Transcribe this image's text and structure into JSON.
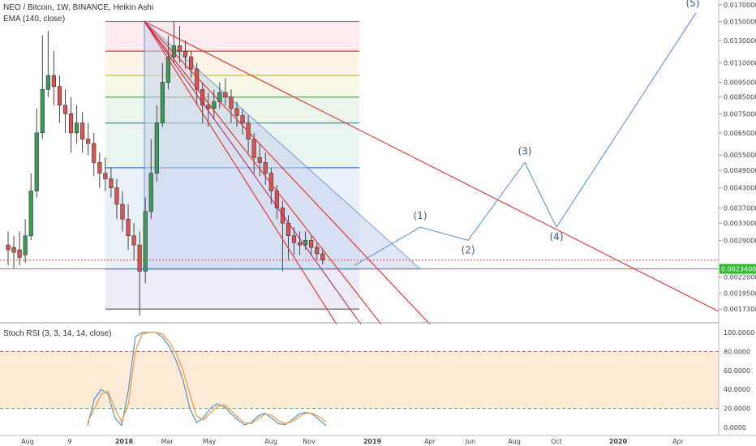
{
  "header": {
    "symbol_line": "NEO / Bitcoin, 1W, BINANCE, Heikin Ashi",
    "indicator_line": "EMA (140, close)",
    "stoch_label": "Stoch RSI (3, 3, 14, 14, close)"
  },
  "colors": {
    "bull": "#3a9a57",
    "bear": "#d9534f",
    "trend_red": "#e53935",
    "trend_blue": "#4a7fd6",
    "wave": "#6e9fd6",
    "stoch_k": "#5a9bd4",
    "stoch_d": "#ff9a3c",
    "price_green": "#2ebd2e"
  },
  "chart_data": [
    {
      "type": "candlestick",
      "title": "NEO / Bitcoin, 1W, BINANCE, Heikin Ashi",
      "y_scale": "log",
      "ylim": [
        0.0016,
        0.0172
      ],
      "y_ticks": [
        0.017,
        0.015,
        0.013,
        0.011,
        0.0095,
        0.0085,
        0.0075,
        0.0065,
        0.0055,
        0.0049,
        0.0043,
        0.0037,
        0.0033,
        0.0029,
        0.0022,
        0.00195,
        0.00173
      ],
      "y_tick_labels": [
        "0.01700000",
        "0.01500000",
        "0.01300000",
        "0.01100000",
        "0.00950000",
        "0.00850000",
        "0.00750000",
        "0.00650000",
        "0.00550000",
        "0.00490000",
        "0.00430000",
        "0.00370000",
        "0.00330000",
        "0.00290000",
        "0.00220000",
        "0.00195000",
        "0.00173000"
      ],
      "price_label": "0.00234000",
      "x_tick_labels": [
        "Aug",
        "9",
        "2018",
        "Mar",
        "May",
        "Aug",
        "Nov",
        "2019",
        "Apr",
        "Jun",
        "Aug",
        "Oct",
        "2020",
        "Apr"
      ],
      "candles": [
        {
          "o": 0.0028,
          "c": 0.0027,
          "h": 0.0031,
          "l": 0.0024
        },
        {
          "o": 0.00275,
          "c": 0.00265,
          "h": 0.003,
          "l": 0.00235
        },
        {
          "o": 0.0027,
          "c": 0.00255,
          "h": 0.0031,
          "l": 0.0024
        },
        {
          "o": 0.0026,
          "c": 0.003,
          "h": 0.0034,
          "l": 0.00245
        },
        {
          "o": 0.003,
          "c": 0.0042,
          "h": 0.0048,
          "l": 0.0029
        },
        {
          "o": 0.0042,
          "c": 0.0065,
          "h": 0.0078,
          "l": 0.004
        },
        {
          "o": 0.0065,
          "c": 0.009,
          "h": 0.0135,
          "l": 0.0062
        },
        {
          "o": 0.009,
          "c": 0.01,
          "h": 0.014,
          "l": 0.0085
        },
        {
          "o": 0.01,
          "c": 0.0092,
          "h": 0.012,
          "l": 0.008
        },
        {
          "o": 0.0092,
          "c": 0.008,
          "h": 0.01,
          "l": 0.007
        },
        {
          "o": 0.008,
          "c": 0.0075,
          "h": 0.009,
          "l": 0.0065
        },
        {
          "o": 0.0075,
          "c": 0.0065,
          "h": 0.0085,
          "l": 0.0056
        },
        {
          "o": 0.0065,
          "c": 0.007,
          "h": 0.008,
          "l": 0.006
        },
        {
          "o": 0.007,
          "c": 0.0062,
          "h": 0.0076,
          "l": 0.0056
        },
        {
          "o": 0.0062,
          "c": 0.006,
          "h": 0.007,
          "l": 0.0055
        },
        {
          "o": 0.006,
          "c": 0.0052,
          "h": 0.0065,
          "l": 0.0047
        },
        {
          "o": 0.0052,
          "c": 0.0048,
          "h": 0.0056,
          "l": 0.0043
        },
        {
          "o": 0.0048,
          "c": 0.0046,
          "h": 0.0054,
          "l": 0.0042
        },
        {
          "o": 0.0046,
          "c": 0.0043,
          "h": 0.005,
          "l": 0.004
        },
        {
          "o": 0.0043,
          "c": 0.0038,
          "h": 0.0046,
          "l": 0.0034
        },
        {
          "o": 0.0038,
          "c": 0.0034,
          "h": 0.0042,
          "l": 0.0031
        },
        {
          "o": 0.0034,
          "c": 0.003,
          "h": 0.0038,
          "l": 0.0027
        },
        {
          "o": 0.003,
          "c": 0.0028,
          "h": 0.0033,
          "l": 0.0025
        },
        {
          "o": 0.0028,
          "c": 0.0023,
          "h": 0.0031,
          "l": 0.00165
        },
        {
          "o": 0.0023,
          "c": 0.0036,
          "h": 0.004,
          "l": 0.0021
        },
        {
          "o": 0.0036,
          "c": 0.0048,
          "h": 0.0062,
          "l": 0.0034
        },
        {
          "o": 0.0048,
          "c": 0.007,
          "h": 0.008,
          "l": 0.0045
        },
        {
          "o": 0.007,
          "c": 0.0095,
          "h": 0.011,
          "l": 0.0068
        },
        {
          "o": 0.0095,
          "c": 0.0115,
          "h": 0.0135,
          "l": 0.009
        },
        {
          "o": 0.0115,
          "c": 0.0125,
          "h": 0.015,
          "l": 0.011
        },
        {
          "o": 0.0125,
          "c": 0.012,
          "h": 0.0145,
          "l": 0.011
        },
        {
          "o": 0.012,
          "c": 0.0115,
          "h": 0.013,
          "l": 0.0105
        },
        {
          "o": 0.0115,
          "c": 0.0105,
          "h": 0.012,
          "l": 0.0098
        },
        {
          "o": 0.0105,
          "c": 0.009,
          "h": 0.011,
          "l": 0.008
        },
        {
          "o": 0.009,
          "c": 0.008,
          "h": 0.0095,
          "l": 0.007
        },
        {
          "o": 0.008,
          "c": 0.0078,
          "h": 0.0088,
          "l": 0.0068
        },
        {
          "o": 0.0078,
          "c": 0.0082,
          "h": 0.009,
          "l": 0.0072
        },
        {
          "o": 0.0082,
          "c": 0.0088,
          "h": 0.0095,
          "l": 0.0078
        },
        {
          "o": 0.0088,
          "c": 0.0085,
          "h": 0.0098,
          "l": 0.008
        },
        {
          "o": 0.0085,
          "c": 0.0078,
          "h": 0.009,
          "l": 0.007
        },
        {
          "o": 0.0078,
          "c": 0.0074,
          "h": 0.0082,
          "l": 0.0068
        },
        {
          "o": 0.0074,
          "c": 0.007,
          "h": 0.0078,
          "l": 0.0064
        },
        {
          "o": 0.007,
          "c": 0.0062,
          "h": 0.0074,
          "l": 0.0056
        },
        {
          "o": 0.0062,
          "c": 0.0054,
          "h": 0.0065,
          "l": 0.0048
        },
        {
          "o": 0.0054,
          "c": 0.0052,
          "h": 0.006,
          "l": 0.0047
        },
        {
          "o": 0.0052,
          "c": 0.0048,
          "h": 0.0056,
          "l": 0.0044
        },
        {
          "o": 0.0048,
          "c": 0.0042,
          "h": 0.005,
          "l": 0.0038
        },
        {
          "o": 0.0042,
          "c": 0.0037,
          "h": 0.0044,
          "l": 0.0034
        },
        {
          "o": 0.0037,
          "c": 0.0033,
          "h": 0.0039,
          "l": 0.0023
        },
        {
          "o": 0.0033,
          "c": 0.003,
          "h": 0.0035,
          "l": 0.0025
        },
        {
          "o": 0.003,
          "c": 0.00285,
          "h": 0.0032,
          "l": 0.0026
        },
        {
          "o": 0.00285,
          "c": 0.0028,
          "h": 0.0031,
          "l": 0.0026
        },
        {
          "o": 0.0028,
          "c": 0.0029,
          "h": 0.0031,
          "l": 0.0027
        },
        {
          "o": 0.0029,
          "c": 0.00275,
          "h": 0.003,
          "l": 0.0026
        },
        {
          "o": 0.00275,
          "c": 0.00262,
          "h": 0.00285,
          "l": 0.0025
        },
        {
          "o": 0.00262,
          "c": 0.0025,
          "h": 0.0027,
          "l": 0.00242
        }
      ],
      "wave_points": [
        {
          "label": "",
          "y": 0.0024
        },
        {
          "label": "(1)",
          "y": 0.0032
        },
        {
          "label": "(2)",
          "y": 0.0029
        },
        {
          "label": "(3)",
          "y": 0.0052
        },
        {
          "label": "(4)",
          "y": 0.0032
        },
        {
          "label": "(5)",
          "y": 0.016
        }
      ]
    },
    {
      "type": "line",
      "title": "Stoch RSI (3, 3, 14, 14, close)",
      "ylim": [
        -5,
        105
      ],
      "y_ticks": [
        100,
        80,
        60,
        40,
        20,
        0
      ],
      "y_tick_labels": [
        "100.0000",
        "80.0000",
        "60.0000",
        "40.0000",
        "20.0000",
        "0.0000"
      ],
      "band": [
        20,
        80
      ],
      "series": [
        {
          "values": [
            2,
            30,
            40,
            35,
            10,
            2,
            40,
            95,
            100,
            100,
            100,
            95,
            85,
            70,
            50,
            20,
            5,
            10,
            20,
            25,
            22,
            15,
            8,
            3,
            5,
            12,
            15,
            10,
            4,
            3,
            8,
            14,
            16,
            14,
            8,
            2
          ]
        },
        {
          "values": [
            5,
            20,
            35,
            38,
            20,
            6,
            25,
            80,
            98,
            100,
            100,
            98,
            90,
            78,
            60,
            35,
            12,
            8,
            15,
            22,
            24,
            18,
            11,
            5,
            4,
            9,
            14,
            13,
            7,
            4,
            6,
            11,
            15,
            15,
            11,
            6
          ]
        }
      ]
    }
  ]
}
